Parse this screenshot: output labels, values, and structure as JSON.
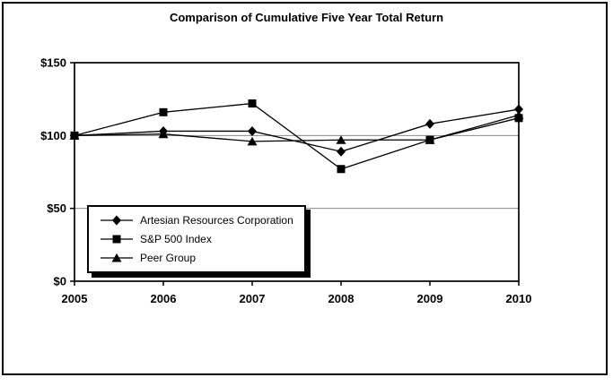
{
  "title": "Comparison of Cumulative Five Year Total Return",
  "chart_data": {
    "type": "line",
    "x": [
      "2005",
      "2006",
      "2007",
      "2008",
      "2009",
      "2010"
    ],
    "series": [
      {
        "name": "Artesian Resources Corporation",
        "marker": "diamond",
        "values": [
          100,
          103,
          103,
          89,
          108,
          118
        ]
      },
      {
        "name": "S&P 500 Index",
        "marker": "square",
        "values": [
          100,
          116,
          122,
          77,
          97,
          112
        ]
      },
      {
        "name": "Peer Group",
        "marker": "triangle",
        "values": [
          100,
          101,
          96,
          97,
          97,
          114
        ]
      }
    ],
    "ylabel": "",
    "xlabel": "",
    "ylim": [
      0,
      150
    ],
    "yticks": [
      0,
      50,
      100,
      150
    ],
    "ytick_labels": [
      "$0",
      "$50",
      "$100",
      "$150"
    ],
    "xtick_labels": [
      "2005",
      "2006",
      "2007",
      "2008",
      "2009",
      "2010"
    ],
    "grid": "horizontal gray lines at interior ticks",
    "legend_position": "inside bottom-left, white box with black drop shadow",
    "colors": {
      "line": "#000000",
      "grid": "#888888",
      "text": "#000000",
      "background": "#ffffff"
    }
  }
}
